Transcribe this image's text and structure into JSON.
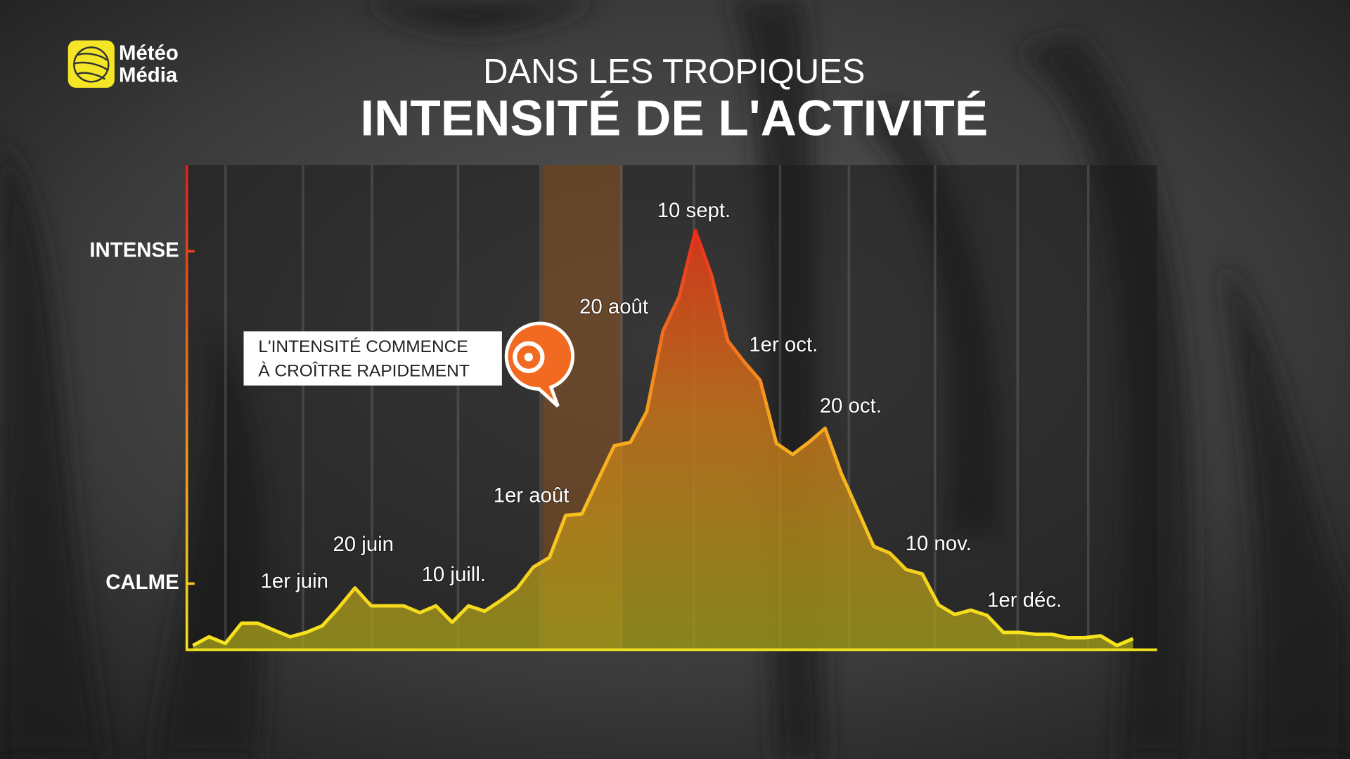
{
  "logo": {
    "line1": "Météo",
    "line2": "Média"
  },
  "chart_data": {
    "type": "area",
    "subtitle": "DANS LES TROPIQUES",
    "title": "INTENSITÉ DE L'ACTIVITÉ",
    "values": [
      0.7,
      2.5,
      1.1,
      5.3,
      5.3,
      3.9,
      2.5,
      3.4,
      4.8,
      8.5,
      12.6,
      8.9,
      8.9,
      8.9,
      7.5,
      8.9,
      5.5,
      8.9,
      7.8,
      10.0,
      12.5,
      16.9,
      18.9,
      27.6,
      27.9,
      35.0,
      42.0,
      42.7,
      49.1,
      65.7,
      72.8,
      86.5,
      77.2,
      63.7,
      59.4,
      55.5,
      42.5,
      40.2,
      42.7,
      45.6,
      36.3,
      28.8,
      21.2,
      19.8,
      16.4,
      15.5,
      9.1,
      7.1,
      8.0,
      6.9,
      3.4,
      3.4,
      3.0,
      3.0,
      2.3,
      2.3,
      2.7,
      0.7,
      2.1
    ],
    "ylim": [
      0,
      100
    ],
    "yticks": [
      {
        "value": 13.5,
        "label": "CALME"
      },
      {
        "value": 82.2,
        "label": "INTENSE"
      }
    ],
    "line_color_top": "#e8261b",
    "line_color_bottom": "#f6e71d",
    "annotations": [
      "1er juin",
      "20 juin",
      "10 juill.",
      "1er août",
      "20 août",
      "10 sept.",
      "1er oct.",
      "20 oct.",
      "10 nov.",
      "1er déc."
    ],
    "callout": [
      "L'INTENSITÉ COMMENCE",
      "À CROÎTRE RAPIDEMENT"
    ]
  }
}
